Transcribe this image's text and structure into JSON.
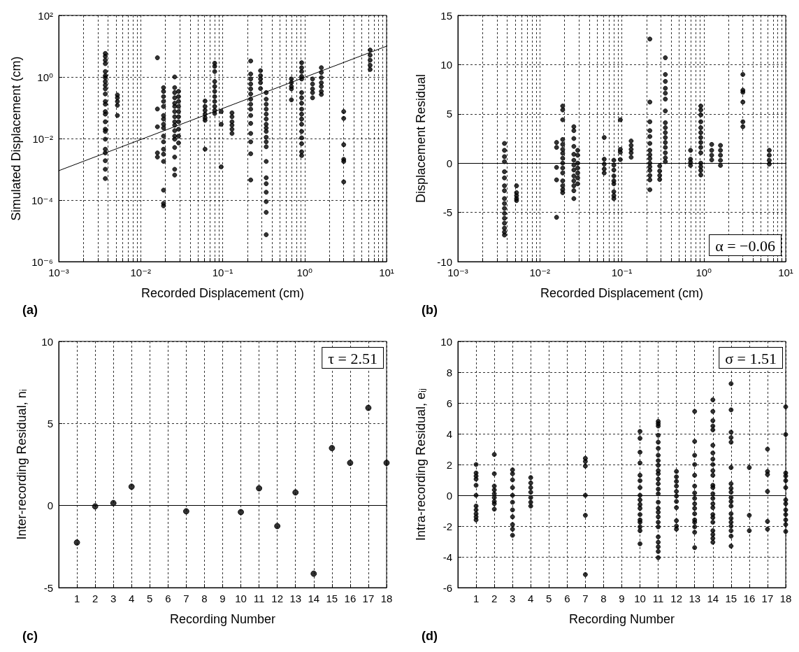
{
  "chart_data": [
    {
      "type": "scatter",
      "xlabel": "Recorded Displacement (cm)",
      "ylabel": "Simulated Displacement (cm)",
      "log": "xy",
      "grid": true,
      "marker": "circle",
      "xlim": [
        0.001,
        10
      ],
      "ylim": [
        1e-06,
        100
      ],
      "xticks": [
        {
          "value": 0.001,
          "label": "10⁻³"
        },
        {
          "value": 0.002,
          "label": null
        },
        {
          "value": 0.003,
          "label": null
        },
        {
          "value": 0.004,
          "label": null
        },
        {
          "value": 0.005,
          "label": null
        },
        {
          "value": 0.006,
          "label": null
        },
        {
          "value": 0.007,
          "label": null
        },
        {
          "value": 0.008,
          "label": null
        },
        {
          "value": 0.009,
          "label": null
        },
        {
          "value": 0.01,
          "label": "10⁻²"
        },
        {
          "value": 0.02,
          "label": null
        },
        {
          "value": 0.03,
          "label": null
        },
        {
          "value": 0.04,
          "label": null
        },
        {
          "value": 0.05,
          "label": null
        },
        {
          "value": 0.06,
          "label": null
        },
        {
          "value": 0.07,
          "label": null
        },
        {
          "value": 0.08,
          "label": null
        },
        {
          "value": 0.09,
          "label": null
        },
        {
          "value": 0.1,
          "label": "10⁻¹"
        },
        {
          "value": 0.2,
          "label": null
        },
        {
          "value": 0.3,
          "label": null
        },
        {
          "value": 0.4,
          "label": null
        },
        {
          "value": 0.5,
          "label": null
        },
        {
          "value": 0.6,
          "label": null
        },
        {
          "value": 0.7,
          "label": null
        },
        {
          "value": 0.8,
          "label": null
        },
        {
          "value": 0.9,
          "label": null
        },
        {
          "value": 1,
          "label": "10⁰"
        },
        {
          "value": 2,
          "label": null
        },
        {
          "value": 3,
          "label": null
        },
        {
          "value": 4,
          "label": null
        },
        {
          "value": 5,
          "label": null
        },
        {
          "value": 6,
          "label": null
        },
        {
          "value": 7,
          "label": null
        },
        {
          "value": 8,
          "label": null
        },
        {
          "value": 9,
          "label": null
        },
        {
          "value": 10,
          "label": "10¹"
        }
      ],
      "yticks": [
        {
          "value": 1e-06,
          "label": "10⁻⁶"
        },
        {
          "value": 0.0001,
          "label": "10⁻⁴"
        },
        {
          "value": 0.01,
          "label": "10⁻²"
        },
        {
          "value": 1,
          "label": "10⁰"
        },
        {
          "value": 100,
          "label": "10²"
        }
      ],
      "annotations": [
        "(a)"
      ],
      "series": [
        {
          "color": "#000000",
          "x": [
            0.0037,
            0.0037,
            0.0037,
            0.0037,
            0.0037,
            0.0037,
            0.0037,
            0.0037,
            0.0037,
            0.0037,
            0.0037,
            0.0037,
            0.0037,
            0.0037,
            0.0037,
            0.0037,
            0.0037,
            0.0037,
            0.0037,
            0.0037,
            0.0037,
            0.0037,
            0.0037,
            0.0037,
            0.0052,
            0.0052,
            0.0052,
            0.0052,
            0.0052,
            0.016,
            0.016,
            0.016,
            0.016,
            0.016,
            0.019,
            0.019,
            0.019,
            0.019,
            0.019,
            0.019,
            0.019,
            0.019,
            0.019,
            0.019,
            0.019,
            0.019,
            0.019,
            0.019,
            0.019,
            0.019,
            0.019,
            0.026,
            0.026,
            0.026,
            0.026,
            0.026,
            0.026,
            0.026,
            0.026,
            0.026,
            0.026,
            0.026,
            0.026,
            0.026,
            0.026,
            0.026,
            0.026,
            0.026,
            0.029,
            0.029,
            0.029,
            0.029,
            0.029,
            0.029,
            0.029,
            0.029,
            0.029,
            0.029,
            0.061,
            0.061,
            0.061,
            0.061,
            0.061,
            0.061,
            0.061,
            0.08,
            0.08,
            0.08,
            0.08,
            0.08,
            0.08,
            0.08,
            0.08,
            0.08,
            0.08,
            0.08,
            0.096,
            0.096,
            0.096,
            0.13,
            0.13,
            0.13,
            0.13,
            0.13,
            0.13,
            0.22,
            0.22,
            0.22,
            0.22,
            0.22,
            0.22,
            0.22,
            0.22,
            0.22,
            0.22,
            0.22,
            0.22,
            0.22,
            0.22,
            0.22,
            0.29,
            0.29,
            0.29,
            0.29,
            0.29,
            0.34,
            0.34,
            0.34,
            0.34,
            0.34,
            0.34,
            0.34,
            0.34,
            0.34,
            0.34,
            0.34,
            0.34,
            0.34,
            0.34,
            0.34,
            0.34,
            0.34,
            0.34,
            0.34,
            0.69,
            0.69,
            0.69,
            0.69,
            0.69,
            0.92,
            0.92,
            0.92,
            0.92,
            0.92,
            0.92,
            0.92,
            0.92,
            0.92,
            0.92,
            0.92,
            0.92,
            0.92,
            0.92,
            0.92,
            0.92,
            0.92,
            1.25,
            1.25,
            1.25,
            1.25,
            1.25,
            1.6,
            1.6,
            1.6,
            1.6,
            1.6,
            1.6,
            1.6,
            3,
            3,
            3,
            3,
            3,
            3,
            6.3,
            6.3,
            6.3,
            6.3,
            6.3
          ],
          "values": [
            5.8,
            4.7,
            3.5,
            2.7,
            1.5,
            1.1,
            0.95,
            0.71,
            0.54,
            0.41,
            0.28,
            0.16,
            0.13,
            0.075,
            0.062,
            0.035,
            0.02,
            0.017,
            0.0095,
            0.0045,
            0.0034,
            0.0019,
            0.001,
            0.0005,
            0.26,
            0.21,
            0.16,
            0.12,
            0.056,
            4.2,
            0.091,
            0.024,
            0.0034,
            0.0025,
            0.45,
            0.34,
            0.23,
            0.16,
            0.11,
            0.056,
            0.043,
            0.029,
            0.022,
            0.012,
            0.0078,
            0.0045,
            0.0031,
            0.0018,
            0.00021,
            7.8e-05,
            6.5e-05,
            1.0,
            0.45,
            0.31,
            0.21,
            0.14,
            0.11,
            0.075,
            0.051,
            0.035,
            0.027,
            0.018,
            0.012,
            0.0095,
            0.0051,
            0.0025,
            0.001,
            0.00065,
            0.34,
            0.23,
            0.16,
            0.11,
            0.075,
            0.051,
            0.035,
            0.02,
            0.012,
            0.0072,
            0.165,
            0.11,
            0.082,
            0.062,
            0.047,
            0.039,
            0.0045,
            2.8,
            2.2,
            1.5,
            0.71,
            0.49,
            0.34,
            0.23,
            0.16,
            0.11,
            0.082,
            0.065,
            0.075,
            0.029,
            0.0012,
            0.068,
            0.051,
            0.035,
            0.027,
            0.02,
            0.0146,
            3.3,
            1.25,
            0.86,
            0.59,
            0.41,
            0.28,
            0.19,
            0.13,
            0.09,
            0.056,
            0.031,
            0.0146,
            0.0078,
            0.0032,
            0.00045,
            1.6,
            1.1,
            0.86,
            0.65,
            0.42,
            0.31,
            0.19,
            0.13,
            0.09,
            0.062,
            0.043,
            0.029,
            0.022,
            0.017,
            0.011,
            0.0078,
            0.0054,
            0.0018,
            0.00053,
            0.00034,
            0.00018,
            8.9e-05,
            4e-05,
            7.5e-06,
            0.86,
            0.65,
            0.49,
            0.41,
            0.18,
            2.9,
            2.0,
            1.5,
            1.04,
            0.86,
            0.31,
            0.21,
            0.14,
            0.09,
            0.062,
            0.043,
            0.029,
            0.017,
            0.0105,
            0.0068,
            0.0037,
            0.0028,
            0.86,
            0.59,
            0.41,
            0.31,
            0.21,
            2.0,
            1.4,
            0.95,
            0.65,
            0.49,
            0.34,
            0.27,
            0.075,
            0.045,
            0.0063,
            0.0021,
            0.0018,
            0.00039,
            7.5,
            5.1,
            3.5,
            2.4,
            1.75
          ]
        },
        {
          "type": "line",
          "marker": "none",
          "line_style": "solid",
          "color": "#000000",
          "x": [
            0.001,
            10
          ],
          "values": [
            0.0009,
            10
          ]
        }
      ]
    },
    {
      "type": "scatter",
      "xlabel": "Recorded Displacement (cm)",
      "ylabel": "Displacement Residual",
      "log": "x",
      "grid": true,
      "marker": "circle",
      "xlim": [
        0.001,
        10
      ],
      "ylim": [
        -10,
        15
      ],
      "xticks": [
        {
          "value": 0.001,
          "label": "10⁻³"
        },
        {
          "value": 0.002,
          "label": null
        },
        {
          "value": 0.003,
          "label": null
        },
        {
          "value": 0.004,
          "label": null
        },
        {
          "value": 0.005,
          "label": null
        },
        {
          "value": 0.006,
          "label": null
        },
        {
          "value": 0.007,
          "label": null
        },
        {
          "value": 0.008,
          "label": null
        },
        {
          "value": 0.009,
          "label": null
        },
        {
          "value": 0.01,
          "label": "10⁻²"
        },
        {
          "value": 0.02,
          "label": null
        },
        {
          "value": 0.03,
          "label": null
        },
        {
          "value": 0.04,
          "label": null
        },
        {
          "value": 0.05,
          "label": null
        },
        {
          "value": 0.06,
          "label": null
        },
        {
          "value": 0.07,
          "label": null
        },
        {
          "value": 0.08,
          "label": null
        },
        {
          "value": 0.09,
          "label": null
        },
        {
          "value": 0.1,
          "label": "10⁻¹"
        },
        {
          "value": 0.2,
          "label": null
        },
        {
          "value": 0.3,
          "label": null
        },
        {
          "value": 0.4,
          "label": null
        },
        {
          "value": 0.5,
          "label": null
        },
        {
          "value": 0.6,
          "label": null
        },
        {
          "value": 0.7,
          "label": null
        },
        {
          "value": 0.8,
          "label": null
        },
        {
          "value": 0.9,
          "label": null
        },
        {
          "value": 1,
          "label": "10⁰"
        },
        {
          "value": 2,
          "label": null
        },
        {
          "value": 3,
          "label": null
        },
        {
          "value": 4,
          "label": null
        },
        {
          "value": 5,
          "label": null
        },
        {
          "value": 6,
          "label": null
        },
        {
          "value": 7,
          "label": null
        },
        {
          "value": 8,
          "label": null
        },
        {
          "value": 9,
          "label": null
        },
        {
          "value": 10,
          "label": "10¹"
        }
      ],
      "yticks": [
        -10,
        -5,
        0,
        5,
        10,
        15
      ],
      "ref_lines": [
        {
          "axis": "y",
          "value": 0,
          "color": "#000000",
          "line_style": "solid"
        }
      ],
      "annotations": [
        "α = −0.06",
        "(b)"
      ],
      "series": [
        {
          "color": "#000000",
          "x": [
            0.0037,
            0.0037,
            0.0037,
            0.0037,
            0.0037,
            0.0037,
            0.0037,
            0.0037,
            0.0037,
            0.0037,
            0.0037,
            0.0037,
            0.0037,
            0.0037,
            0.0037,
            0.0037,
            0.0037,
            0.0052,
            0.0052,
            0.0052,
            0.0052,
            0.0052,
            0.016,
            0.016,
            0.016,
            0.016,
            0.016,
            0.019,
            0.019,
            0.019,
            0.019,
            0.019,
            0.019,
            0.019,
            0.019,
            0.019,
            0.019,
            0.019,
            0.019,
            0.019,
            0.019,
            0.019,
            0.026,
            0.026,
            0.026,
            0.026,
            0.026,
            0.026,
            0.026,
            0.026,
            0.026,
            0.026,
            0.026,
            0.026,
            0.026,
            0.029,
            0.029,
            0.029,
            0.029,
            0.029,
            0.029,
            0.029,
            0.061,
            0.061,
            0.061,
            0.061,
            0.061,
            0.08,
            0.08,
            0.08,
            0.08,
            0.08,
            0.08,
            0.08,
            0.08,
            0.08,
            0.096,
            0.096,
            0.096,
            0.096,
            0.13,
            0.13,
            0.13,
            0.13,
            0.13,
            0.22,
            0.22,
            0.22,
            0.22,
            0.22,
            0.22,
            0.22,
            0.22,
            0.22,
            0.22,
            0.22,
            0.22,
            0.22,
            0.22,
            0.22,
            0.29,
            0.29,
            0.29,
            0.29,
            0.34,
            0.34,
            0.34,
            0.34,
            0.34,
            0.34,
            0.34,
            0.34,
            0.34,
            0.34,
            0.34,
            0.34,
            0.34,
            0.34,
            0.34,
            0.34,
            0.69,
            0.69,
            0.69,
            0.69,
            0.92,
            0.92,
            0.92,
            0.92,
            0.92,
            0.92,
            0.92,
            0.92,
            0.92,
            0.92,
            0.92,
            0.92,
            0.92,
            0.92,
            1.25,
            1.25,
            1.25,
            1.25,
            1.6,
            1.6,
            1.6,
            1.6,
            1.6,
            3,
            3,
            3,
            3,
            3,
            3,
            6.3,
            6.3,
            6.3,
            6.3
          ],
          "values": [
            2.0,
            1.3,
            0.66,
            0.15,
            -0.87,
            -1.5,
            -2.3,
            -2.8,
            -3.6,
            -4.1,
            -4.6,
            -5.1,
            -5.6,
            -6.1,
            -6.6,
            -7.0,
            -7.3,
            -2.3,
            -3.0,
            -3.3,
            -3.6,
            -3.8,
            2.1,
            1.6,
            -0.43,
            -1.7,
            -5.5,
            5.8,
            5.4,
            4.4,
            2.4,
            1.9,
            1.4,
            1.0,
            0.5,
            0,
            -0.5,
            -1.0,
            -1.8,
            -2.3,
            -2.7,
            -3.0,
            3.7,
            3.3,
            2.5,
            1.7,
            0.9,
            0.3,
            -0.2,
            -0.7,
            -1.3,
            -1.8,
            -2.3,
            -2.8,
            -3.6,
            1.3,
            0.8,
            0,
            -0.5,
            -1.0,
            -1.5,
            -2.1,
            2.6,
            0.4,
            -0.1,
            -0.6,
            -1.0,
            0.3,
            -0.2,
            -0.7,
            -1.3,
            -1.8,
            -2.1,
            -2.9,
            -3.3,
            -3.6,
            4.4,
            1.4,
            1.1,
            0.36,
            2.25,
            1.8,
            1.4,
            1.05,
            0.6,
            12.6,
            6.2,
            4.2,
            3.3,
            2.7,
            2.0,
            1.3,
            0.85,
            0.46,
            0,
            -0.36,
            -0.74,
            -1.25,
            -1.7,
            -2.7,
            -0.28,
            -0.8,
            -1.25,
            -1.66,
            10.7,
            9.0,
            8.3,
            7.6,
            7.1,
            6.5,
            5.3,
            4.1,
            3.6,
            3.1,
            2.6,
            2.1,
            1.6,
            1.05,
            0.54,
            0.15,
            1.3,
            0.4,
            0.08,
            -0.23,
            5.8,
            5.4,
            4.9,
            4.2,
            3.6,
            3.1,
            2.6,
            2.1,
            1.6,
            1.05,
            0,
            -0.36,
            -0.74,
            -1.2,
            1.9,
            1.3,
            0.8,
            0.33,
            1.8,
            1.3,
            0.8,
            0.28,
            -0.23,
            9.0,
            7.4,
            7.2,
            6.2,
            4.2,
            3.7,
            1.3,
            0.8,
            0.28,
            -0.1
          ]
        }
      ]
    },
    {
      "type": "scatter",
      "xlabel": "Recording Number",
      "ylabel": "Inter-recording Residual, nᵢ",
      "grid": true,
      "marker": "circle",
      "xlim": [
        0,
        18
      ],
      "ylim": [
        -5,
        10
      ],
      "xticks": [
        1,
        2,
        3,
        4,
        5,
        6,
        7,
        8,
        9,
        10,
        11,
        12,
        13,
        14,
        15,
        16,
        17,
        18
      ],
      "yticks": [
        -5,
        0,
        5,
        10
      ],
      "ref_lines": [
        {
          "axis": "y",
          "value": 0,
          "color": "#000000",
          "line_style": "solid"
        }
      ],
      "annotations": [
        "τ = 2.51",
        "(c)"
      ],
      "series": [
        {
          "color": "#000000",
          "x": [
            1,
            2,
            3,
            4,
            7,
            10,
            11,
            12,
            13,
            14,
            15,
            16,
            17,
            18
          ],
          "values": [
            -2.25,
            -0.05,
            0.15,
            1.15,
            -0.35,
            -0.4,
            1.05,
            -1.25,
            0.8,
            -4.15,
            3.5,
            2.6,
            5.95,
            2.6
          ]
        }
      ]
    },
    {
      "type": "scatter",
      "xlabel": "Recording Number",
      "ylabel": "Intra-recording Residual, eᵢⱼ",
      "grid": true,
      "marker": "circle",
      "xlim": [
        0,
        18
      ],
      "ylim": [
        -6,
        10
      ],
      "xticks": [
        1,
        2,
        3,
        4,
        5,
        6,
        7,
        8,
        9,
        10,
        11,
        12,
        13,
        14,
        15,
        16,
        17,
        18
      ],
      "yticks": [
        -6,
        -4,
        -2,
        0,
        2,
        4,
        6,
        8,
        10
      ],
      "ref_lines": [
        {
          "axis": "y",
          "value": 0,
          "color": "#000000",
          "line_style": "solid"
        }
      ],
      "annotations": [
        "σ = 1.51",
        "(d)"
      ],
      "series": [
        {
          "color": "#000000",
          "x": [
            1,
            1,
            1,
            1,
            1,
            1,
            1,
            1,
            1,
            1,
            1,
            2,
            2,
            2,
            2,
            2,
            2,
            2,
            2,
            2,
            3,
            3,
            3,
            3,
            3,
            3,
            3,
            3,
            3,
            3,
            3,
            4,
            4,
            4,
            4,
            4,
            4,
            4,
            7,
            7,
            7,
            7,
            7,
            7,
            10,
            10,
            10,
            10,
            10,
            10,
            10,
            10,
            10,
            10,
            10,
            10,
            10,
            10,
            10,
            10,
            10,
            11,
            11,
            11,
            11,
            11,
            11,
            11,
            11,
            11,
            11,
            11,
            11,
            11,
            11,
            11,
            11,
            11,
            11,
            11,
            11,
            11,
            11,
            11,
            11,
            11,
            11,
            12,
            12,
            12,
            12,
            12,
            12,
            12,
            12,
            12,
            12,
            12,
            13,
            13,
            13,
            13,
            13,
            13,
            13,
            13,
            13,
            13,
            13,
            13,
            13,
            13,
            13,
            13,
            14,
            14,
            14,
            14,
            14,
            14,
            14,
            14,
            14,
            14,
            14,
            14,
            14,
            14,
            14,
            14,
            14,
            14,
            14,
            14,
            14,
            14,
            14,
            14,
            15,
            15,
            15,
            15,
            15,
            15,
            15,
            15,
            15,
            15,
            15,
            15,
            15,
            15,
            15,
            15,
            15,
            15,
            15,
            16,
            16,
            16,
            17,
            17,
            17,
            17,
            17,
            17,
            18,
            18,
            18,
            18,
            18,
            18,
            18,
            18,
            18,
            18,
            18,
            18,
            18
          ],
          "values": [
            2.0,
            1.45,
            1.25,
            1.05,
            0.65,
            0,
            -0.7,
            -0.95,
            -1.2,
            -1.4,
            -1.6,
            2.65,
            1.4,
            0.6,
            0.35,
            0.1,
            -0.15,
            -0.4,
            -0.55,
            -0.9,
            1.65,
            1.4,
            1.0,
            0.5,
            0,
            -0.45,
            -0.95,
            -1.4,
            -1.9,
            -2.2,
            -2.6,
            1.15,
            0.8,
            0.5,
            0.2,
            -0.15,
            -0.45,
            -0.7,
            2.4,
            2.2,
            1.9,
            0,
            -1.3,
            -5.15,
            4.15,
            3.7,
            2.8,
            2.1,
            1.3,
            0.95,
            0.5,
            0,
            -0.3,
            -0.6,
            -0.85,
            -1.25,
            -1.6,
            -1.75,
            -2.05,
            -2.3,
            -3.15,
            4.8,
            4.65,
            4.5,
            3.9,
            3.45,
            3.05,
            2.6,
            2.25,
            1.95,
            1.6,
            1.4,
            1.05,
            0.75,
            0.4,
            0.1,
            -0.45,
            -0.85,
            -1.1,
            -1.4,
            -1.75,
            -2.05,
            -2.7,
            -3.05,
            -3.35,
            -3.65,
            -4.05,
            1.55,
            1.2,
            0.9,
            0.6,
            0.25,
            -0.05,
            -0.4,
            -0.8,
            -1.65,
            -2.0,
            -2.2,
            5.45,
            3.5,
            2.6,
            2.0,
            1.3,
            0.6,
            0.15,
            -0.2,
            -0.55,
            -0.85,
            -1.2,
            -1.6,
            -1.75,
            -2.05,
            -2.4,
            -3.4,
            6.2,
            5.45,
            4.85,
            4.5,
            4.25,
            3.25,
            2.75,
            2.35,
            2.0,
            1.6,
            1.3,
            0.65,
            0.5,
            0.1,
            -0.2,
            -0.55,
            -0.8,
            -1.25,
            -1.45,
            -1.75,
            -2.3,
            -2.55,
            -2.8,
            -3.05,
            7.25,
            5.55,
            4.1,
            3.75,
            3.45,
            1.8,
            0.75,
            0.45,
            0.2,
            -0.15,
            -0.4,
            -0.7,
            -1.2,
            -1.5,
            -1.75,
            -2.0,
            -2.3,
            -2.65,
            -3.3,
            1.8,
            -1.3,
            -2.3,
            3.0,
            1.55,
            1.35,
            0.25,
            -1.7,
            -2.2,
            5.75,
            3.95,
            1.45,
            1.25,
            0.95,
            0.5,
            -0.3,
            -0.55,
            -0.95,
            -1.25,
            -1.6,
            -1.9,
            -2.35
          ]
        }
      ]
    }
  ]
}
